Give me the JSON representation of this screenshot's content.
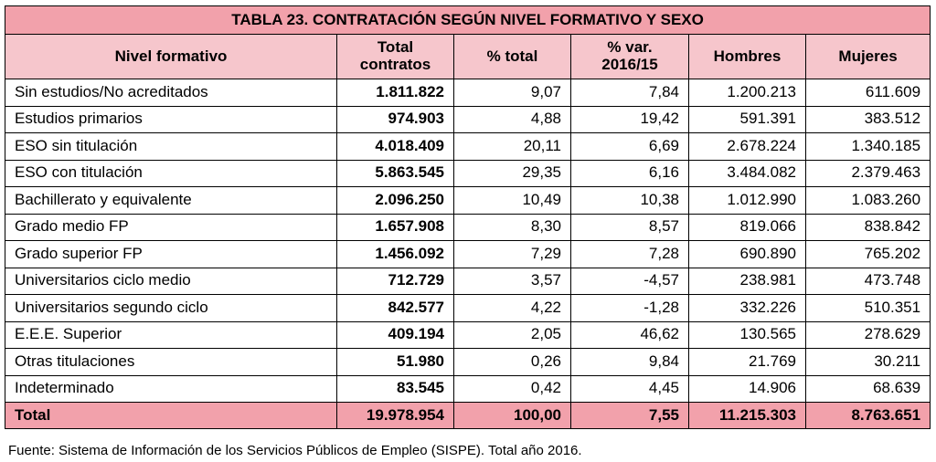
{
  "title": "TABLA 23. CONTRATACIÓN SEGÚN NIVEL FORMATIVO Y SEXO",
  "colors": {
    "title_bg": "#f2a1ab",
    "header_bg": "#f6c6cc",
    "total_bg": "#f2a1ab",
    "border": "#000000"
  },
  "headers": {
    "nivel": "Nivel formativo",
    "total_line1": "Total",
    "total_line2": "contratos",
    "pct_total": "% total",
    "var_line1": "% var.",
    "var_line2": "2016/15",
    "hombres": "Hombres",
    "mujeres": "Mujeres"
  },
  "rows": [
    {
      "nivel": "Sin estudios/No acreditados",
      "total": "1.811.822",
      "pct": "9,07",
      "var": "7,84",
      "hombres": "1.200.213",
      "mujeres": "611.609"
    },
    {
      "nivel": "Estudios primarios",
      "total": "974.903",
      "pct": "4,88",
      "var": "19,42",
      "hombres": "591.391",
      "mujeres": "383.512"
    },
    {
      "nivel": "ESO sin titulación",
      "total": "4.018.409",
      "pct": "20,11",
      "var": "6,69",
      "hombres": "2.678.224",
      "mujeres": "1.340.185"
    },
    {
      "nivel": "ESO con titulación",
      "total": "5.863.545",
      "pct": "29,35",
      "var": "6,16",
      "hombres": "3.484.082",
      "mujeres": "2.379.463"
    },
    {
      "nivel": "Bachillerato y equivalente",
      "total": "2.096.250",
      "pct": "10,49",
      "var": "10,38",
      "hombres": "1.012.990",
      "mujeres": "1.083.260"
    },
    {
      "nivel": "Grado medio FP",
      "total": "1.657.908",
      "pct": "8,30",
      "var": "8,57",
      "hombres": "819.066",
      "mujeres": "838.842"
    },
    {
      "nivel": "Grado superior FP",
      "total": "1.456.092",
      "pct": "7,29",
      "var": "7,28",
      "hombres": "690.890",
      "mujeres": "765.202"
    },
    {
      "nivel": "Universitarios ciclo medio",
      "total": "712.729",
      "pct": "3,57",
      "var": "-4,57",
      "hombres": "238.981",
      "mujeres": "473.748"
    },
    {
      "nivel": "Universitarios segundo ciclo",
      "total": "842.577",
      "pct": "4,22",
      "var": "-1,28",
      "hombres": "332.226",
      "mujeres": "510.351"
    },
    {
      "nivel": "E.E.E. Superior",
      "total": "409.194",
      "pct": "2,05",
      "var": "46,62",
      "hombres": "130.565",
      "mujeres": "278.629"
    },
    {
      "nivel": "Otras titulaciones",
      "total": "51.980",
      "pct": "0,26",
      "var": "9,84",
      "hombres": "21.769",
      "mujeres": "30.211"
    },
    {
      "nivel": "Indeterminado",
      "total": "83.545",
      "pct": "0,42",
      "var": "4,45",
      "hombres": "14.906",
      "mujeres": "68.639"
    }
  ],
  "total_row": {
    "label": "Total",
    "total": "19.978.954",
    "pct": "100,00",
    "var": "7,55",
    "hombres": "11.215.303",
    "mujeres": "8.763.651"
  },
  "footnote": "Fuente: Sistema de Información de los Servicios Públicos de Empleo (SISPE). Total año 2016."
}
